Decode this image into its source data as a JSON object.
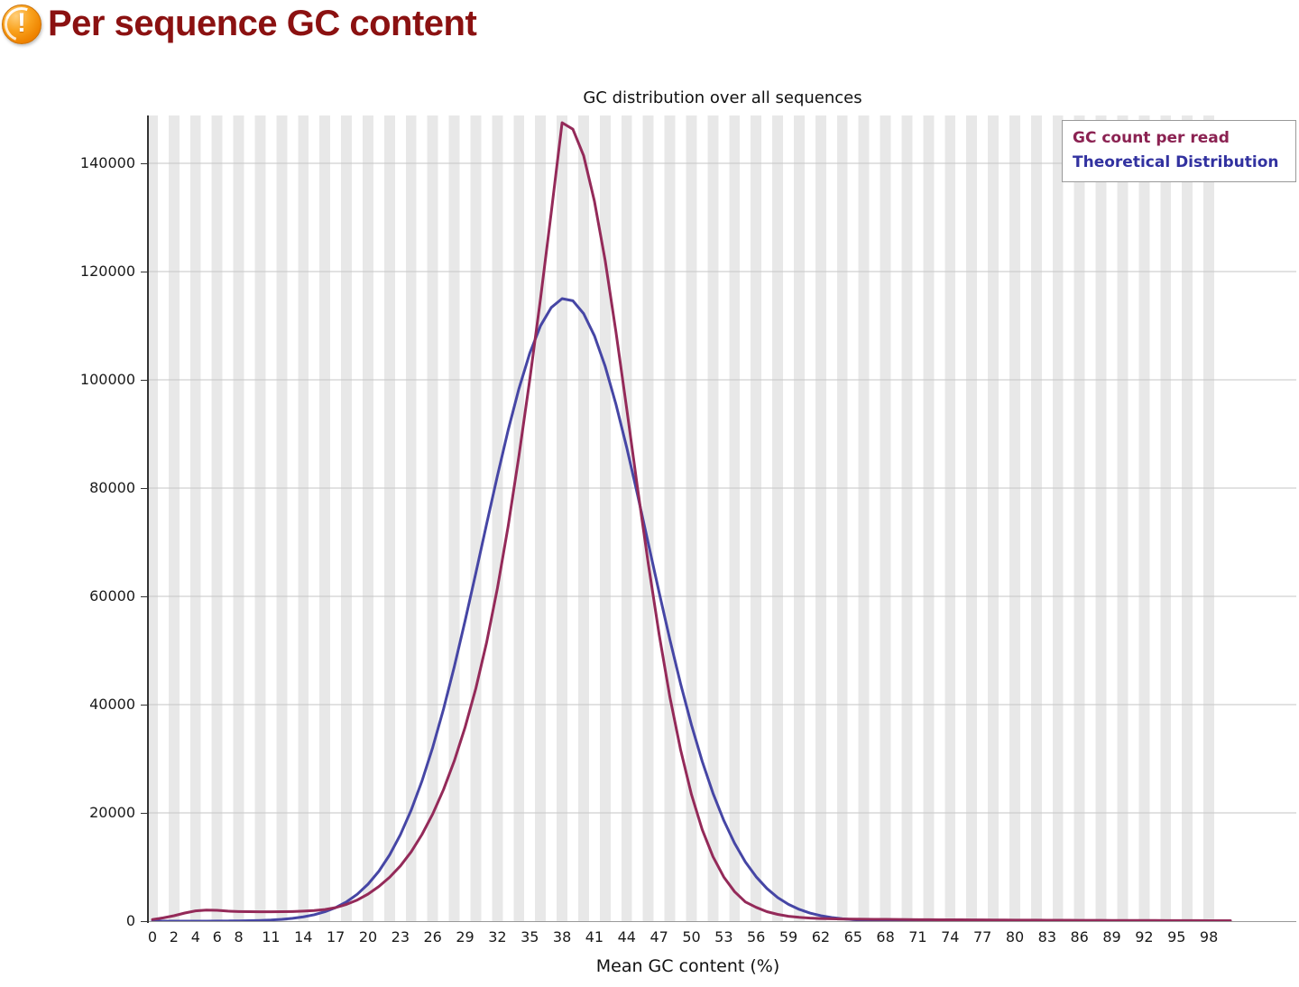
{
  "header": {
    "title": "Per sequence GC content",
    "status": "warning",
    "icon_glyph": "!"
  },
  "chart": {
    "title": "GC distribution over all sequences",
    "xlabel": "Mean GC content (%)",
    "legend": [
      {
        "label": "GC count per read",
        "color": "#8b2252"
      },
      {
        "label": "Theoretical Distribution",
        "color": "#3232a0"
      }
    ]
  },
  "chart_data": {
    "type": "line",
    "title": "GC distribution over all sequences",
    "xlabel": "Mean GC content (%)",
    "ylabel": "",
    "xlim": [
      0,
      100
    ],
    "ylim": [
      0,
      148800
    ],
    "grid": "horizontal",
    "legend_position": "top-right",
    "x_ticks": [
      0,
      2,
      4,
      6,
      8,
      11,
      14,
      17,
      20,
      23,
      26,
      29,
      32,
      35,
      38,
      41,
      44,
      47,
      50,
      53,
      56,
      59,
      62,
      65,
      68,
      71,
      74,
      77,
      80,
      83,
      86,
      89,
      92,
      95,
      98
    ],
    "y_ticks": [
      0,
      20000,
      40000,
      60000,
      80000,
      100000,
      120000,
      140000
    ],
    "x": [
      0,
      1,
      2,
      3,
      4,
      5,
      6,
      7,
      8,
      9,
      10,
      11,
      12,
      13,
      14,
      15,
      16,
      17,
      18,
      19,
      20,
      21,
      22,
      23,
      24,
      25,
      26,
      27,
      28,
      29,
      30,
      31,
      32,
      33,
      34,
      35,
      36,
      37,
      38,
      39,
      40,
      41,
      42,
      43,
      44,
      45,
      46,
      47,
      48,
      49,
      50,
      51,
      52,
      53,
      54,
      55,
      56,
      57,
      58,
      59,
      60,
      61,
      62,
      63,
      64,
      65,
      66,
      67,
      68,
      69,
      70,
      71,
      72,
      73,
      74,
      75,
      76,
      77,
      78,
      79,
      80,
      81,
      82,
      83,
      84,
      85,
      86,
      87,
      88,
      89,
      90,
      91,
      92,
      93,
      94,
      95,
      96,
      97,
      98,
      99,
      100
    ],
    "series": [
      {
        "name": "GC count per read",
        "color": "#942a59",
        "values": [
          300,
          600,
          1000,
          1500,
          1900,
          2050,
          2000,
          1850,
          1780,
          1750,
          1730,
          1730,
          1750,
          1780,
          1850,
          1950,
          2150,
          2500,
          3100,
          3900,
          5000,
          6400,
          8100,
          10200,
          12800,
          16000,
          19800,
          24300,
          29600,
          35800,
          43000,
          51500,
          61500,
          73000,
          86000,
          100000,
          115000,
          131000,
          147500,
          146300,
          141400,
          133000,
          122000,
          108800,
          94600,
          80000,
          66000,
          53000,
          41400,
          31600,
          23400,
          16900,
          11900,
          8150,
          5450,
          3550,
          2550,
          1750,
          1250,
          900,
          700,
          560,
          480,
          430,
          400,
          380,
          360,
          340,
          330,
          310,
          300,
          280,
          270,
          260,
          250,
          240,
          230,
          220,
          210,
          200,
          195,
          190,
          180,
          175,
          165,
          160,
          150,
          145,
          140,
          135,
          130,
          125,
          120,
          115,
          110,
          105,
          100,
          95,
          90,
          85,
          80
        ]
      },
      {
        "name": "Theoretical Distribution",
        "color": "#4646a5",
        "values": [
          0,
          0,
          0,
          0,
          5,
          10,
          15,
          30,
          50,
          80,
          135,
          215,
          340,
          520,
          790,
          1180,
          1740,
          2510,
          3560,
          4970,
          6830,
          9210,
          12230,
          15970,
          20500,
          25870,
          32100,
          39170,
          47000,
          55480,
          64320,
          73380,
          82260,
          90740,
          98390,
          104900,
          109990,
          113370,
          115000,
          114600,
          112230,
          108140,
          102470,
          95460,
          87460,
          78770,
          69750,
          60750,
          52010,
          43790,
          36260,
          29510,
          23620,
          18600,
          14390,
          10940,
          8200,
          6030,
          4360,
          3100,
          2170,
          1490,
          1010,
          670,
          440,
          280,
          180,
          110,
          70,
          40,
          25,
          15,
          8,
          5,
          3,
          0,
          0,
          0,
          0,
          0,
          0,
          0,
          0,
          0,
          0,
          0,
          0,
          0,
          0,
          0,
          0,
          0,
          0,
          0,
          0,
          0,
          0,
          0,
          0,
          0,
          0
        ]
      }
    ]
  }
}
